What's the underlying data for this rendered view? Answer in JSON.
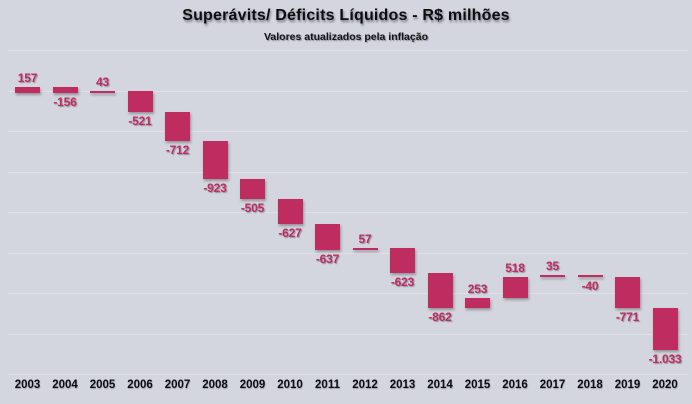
{
  "chart_data": {
    "type": "bar",
    "subtype": "waterfall",
    "title": "Superávits/ Déficits Líquidos - R$ milhões",
    "subtitle": "Valores atualizados pela inflação",
    "categories": [
      "2003",
      "2004",
      "2005",
      "2006",
      "2007",
      "2008",
      "2009",
      "2010",
      "2011",
      "2012",
      "2013",
      "2014",
      "2015",
      "2016",
      "2017",
      "2018",
      "2019",
      "2020"
    ],
    "values": [
      157,
      -156,
      43,
      -521,
      -712,
      -923,
      -505,
      -627,
      -637,
      57,
      -623,
      -862,
      253,
      518,
      35,
      -40,
      -771,
      -1033
    ],
    "labels": [
      "157",
      "-156",
      "43",
      "-521",
      "-712",
      "-923",
      "-505",
      "-627",
      "-637",
      "57",
      "-623",
      "-862",
      "253",
      "518",
      "35",
      "-40",
      "-771",
      "-1.033"
    ],
    "cumulative_start": 0,
    "xlabel": "",
    "ylabel": "",
    "axis": {
      "ymax": 1000,
      "ymin": -7000,
      "gridline_step": 1000,
      "gridlines_visible": true,
      "y_tick_labels_visible": false
    },
    "legend": "none",
    "colors": {
      "bar": "#bf2c60",
      "data_label": "#bf2c60",
      "background": "#d3d6de",
      "gridline": "#dfe1e7",
      "title_text": "#0d0d0f",
      "year_text": "#0d0d0f"
    }
  }
}
